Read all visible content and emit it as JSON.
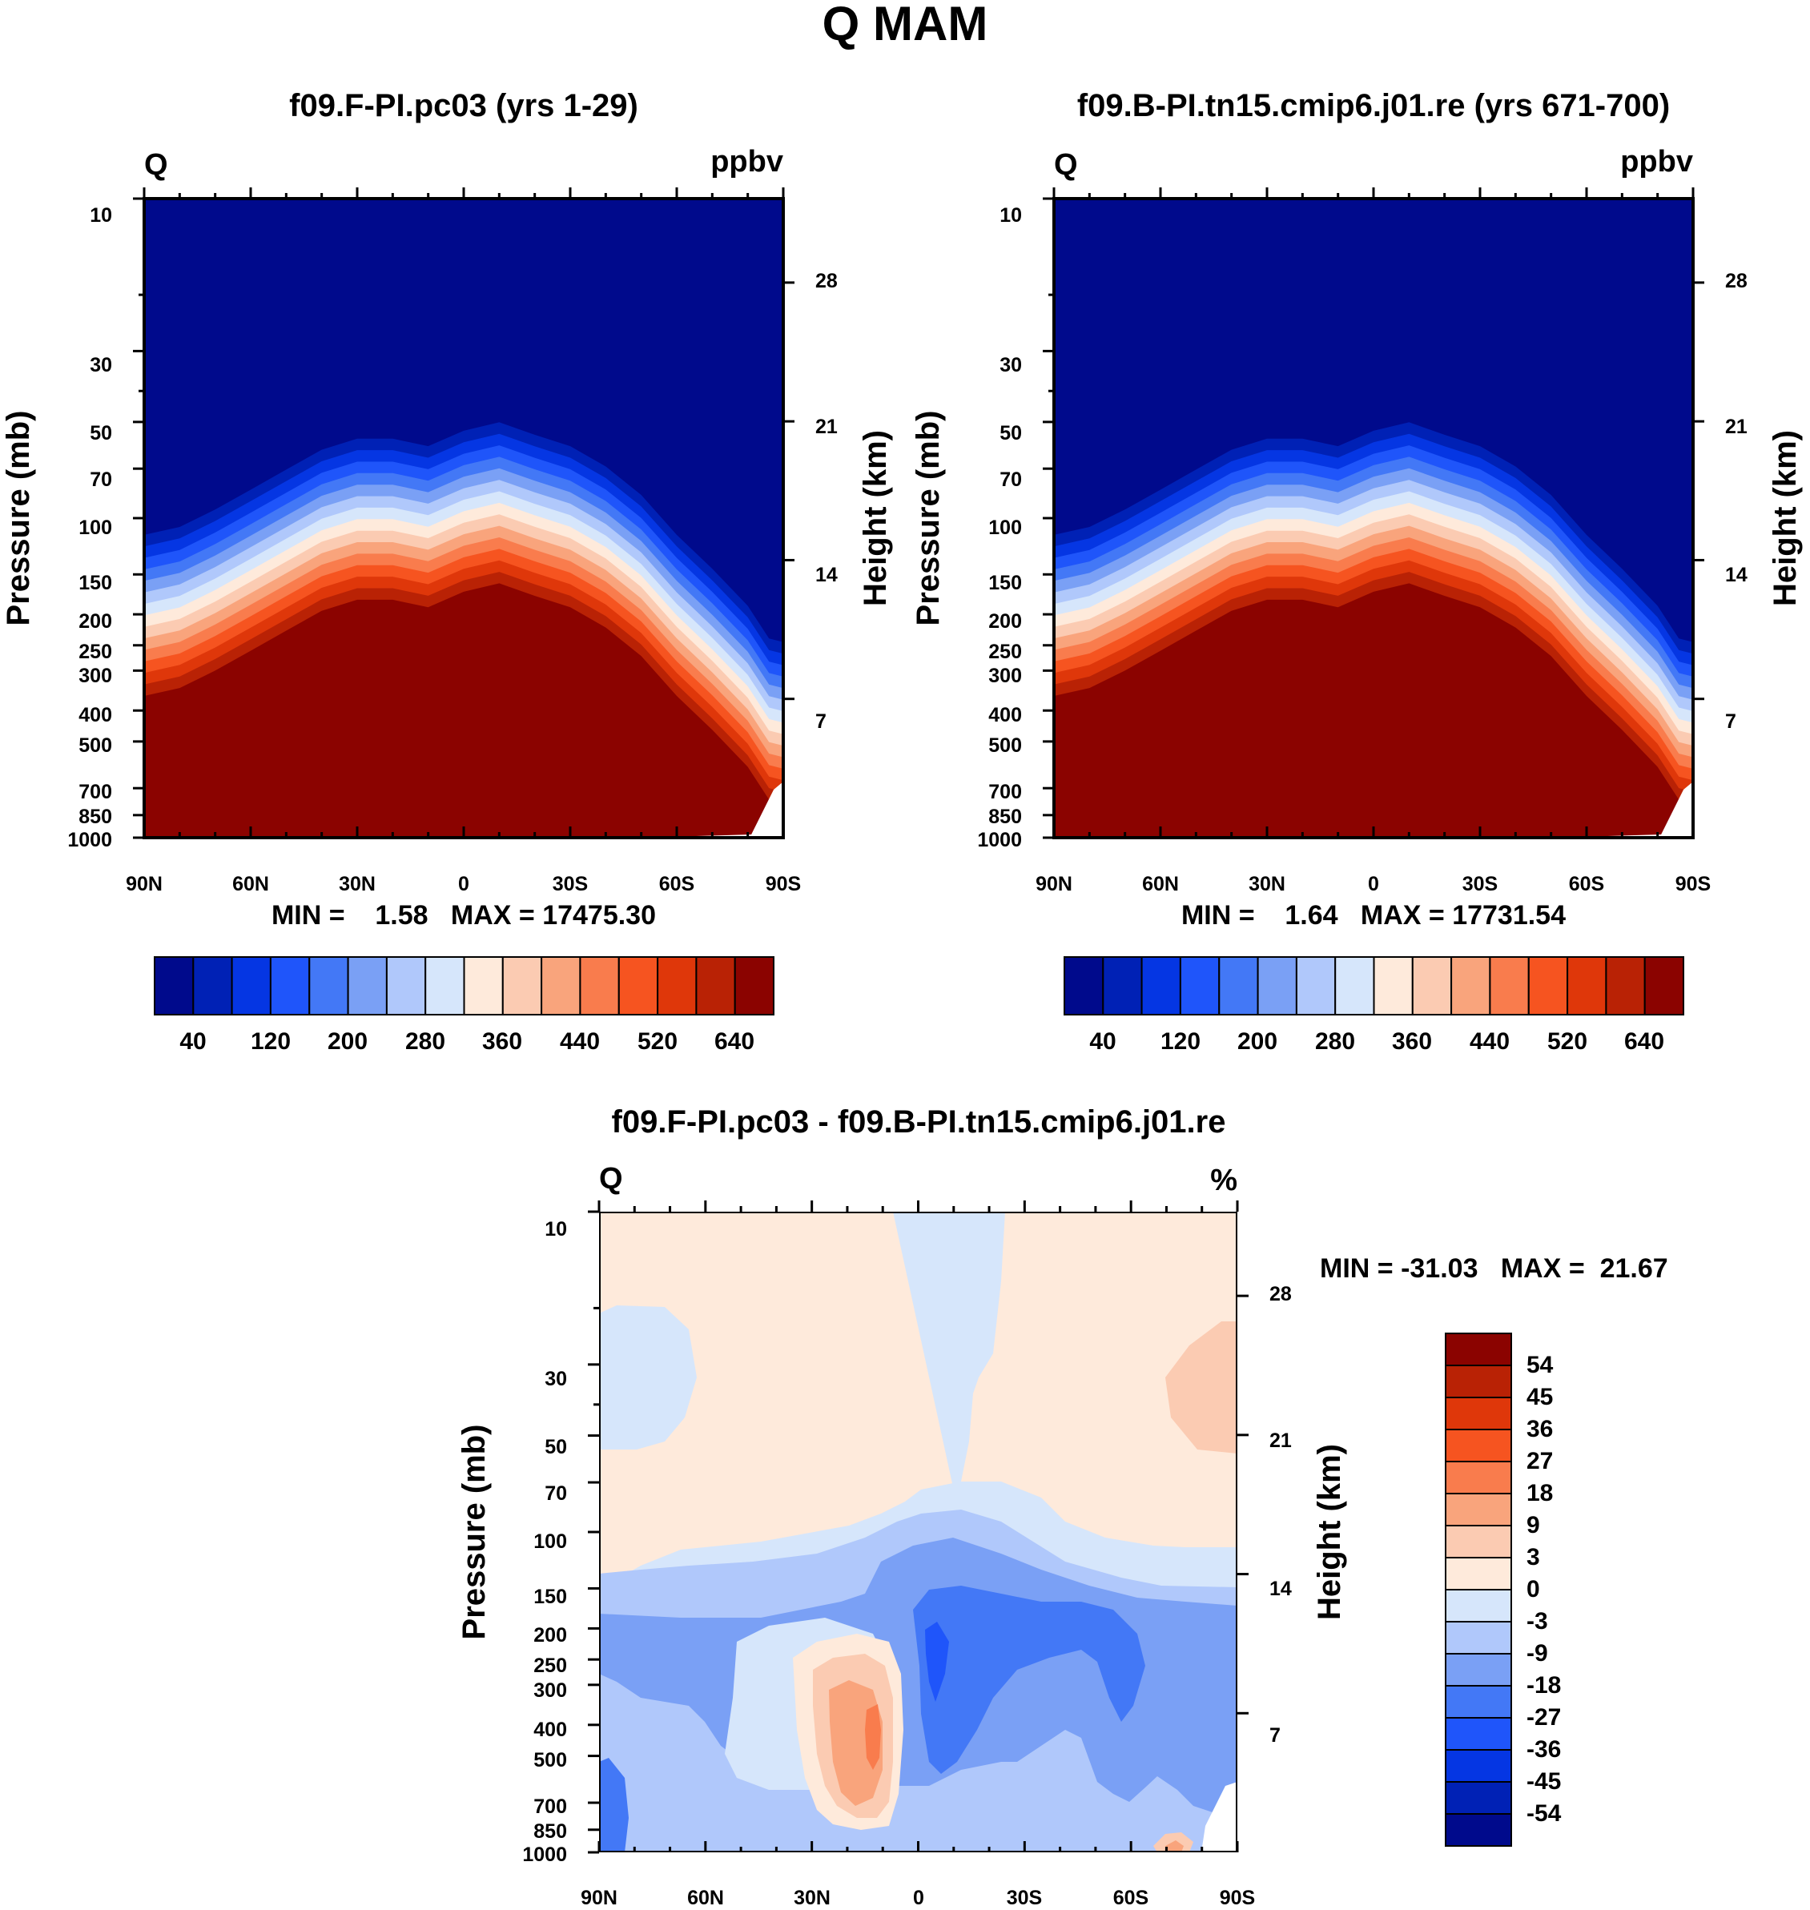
{
  "figure_title": "Q MAM",
  "colors": {
    "abs_levels": [
      "#000a8c",
      "#0021b5",
      "#0536e3",
      "#1f55fa",
      "#4378f6",
      "#7aa0f5",
      "#b0c8fb",
      "#d6e6fb",
      "#feeadb",
      "#fbcbb2",
      "#f9a47c",
      "#f97c4d",
      "#f65420",
      "#df370a",
      "#b92205",
      "#8b0300"
    ],
    "diff_levels": [
      "#000a8c",
      "#0021b5",
      "#0536e3",
      "#1f55fa",
      "#4378f6",
      "#7aa0f5",
      "#b0c8fb",
      "#d6e6fb",
      "#feeadb",
      "#fbcbb2",
      "#f9a47c",
      "#f97c4d",
      "#f65420",
      "#df370a",
      "#b92205",
      "#8b0300"
    ]
  },
  "chart_data": [
    {
      "id": "panel-a",
      "type": "contour",
      "title": "f09.F-PI.pc03 (yrs 1-29)",
      "left_label": "Q",
      "right_label": "ppbv",
      "ylabel": "Pressure (mb)",
      "y2label": "Height (km)",
      "x_ticks": [
        "90N",
        "60N",
        "30N",
        "0",
        "30S",
        "60S",
        "90S"
      ],
      "p_ticks": [
        "10",
        "30",
        "50",
        "70",
        "100",
        "150",
        "200",
        "250",
        "300",
        "400",
        "500",
        "700",
        "850",
        "1000"
      ],
      "h_ticks": [
        "28",
        "21",
        "14",
        "7"
      ],
      "ylim": [
        10,
        1000
      ],
      "stats": "MIN =    1.58   MAX = 17475.30",
      "colorbar_labels": [
        "40",
        "120",
        "200",
        "280",
        "360",
        "440",
        "520",
        "640"
      ],
      "boundary_mb": [
        [
          0,
          360
        ],
        [
          5,
          340
        ],
        [
          10,
          300
        ],
        [
          15,
          260
        ],
        [
          20,
          225
        ],
        [
          25,
          195
        ],
        [
          30,
          180
        ],
        [
          35,
          180
        ],
        [
          40,
          190
        ],
        [
          45,
          170
        ],
        [
          50,
          160
        ],
        [
          55,
          175
        ],
        [
          60,
          190
        ],
        [
          65,
          220
        ],
        [
          70,
          270
        ],
        [
          75,
          360
        ],
        [
          80,
          460
        ],
        [
          85,
          600
        ],
        [
          88,
          760
        ],
        [
          90,
          780
        ]
      ]
    },
    {
      "id": "panel-b",
      "type": "contour",
      "title": "f09.B-PI.tn15.cmip6.j01.re (yrs 671-700)",
      "left_label": "Q",
      "right_label": "ppbv",
      "ylabel": "Pressure (mb)",
      "y2label": "Height (km)",
      "x_ticks": [
        "90N",
        "60N",
        "30N",
        "0",
        "30S",
        "60S",
        "90S"
      ],
      "p_ticks": [
        "10",
        "30",
        "50",
        "70",
        "100",
        "150",
        "200",
        "250",
        "300",
        "400",
        "500",
        "700",
        "850",
        "1000"
      ],
      "h_ticks": [
        "28",
        "21",
        "14",
        "7"
      ],
      "ylim": [
        10,
        1000
      ],
      "stats": "MIN =    1.64   MAX = 17731.54",
      "colorbar_labels": [
        "40",
        "120",
        "200",
        "280",
        "360",
        "440",
        "520",
        "640"
      ],
      "boundary_mb": [
        [
          0,
          360
        ],
        [
          5,
          340
        ],
        [
          10,
          300
        ],
        [
          15,
          260
        ],
        [
          20,
          225
        ],
        [
          25,
          195
        ],
        [
          30,
          180
        ],
        [
          35,
          180
        ],
        [
          40,
          190
        ],
        [
          45,
          170
        ],
        [
          50,
          160
        ],
        [
          55,
          175
        ],
        [
          60,
          190
        ],
        [
          65,
          220
        ],
        [
          70,
          270
        ],
        [
          75,
          360
        ],
        [
          80,
          460
        ],
        [
          85,
          600
        ],
        [
          88,
          760
        ],
        [
          90,
          780
        ]
      ]
    },
    {
      "id": "panel-diff",
      "type": "contour",
      "title": "f09.F-PI.pc03 - f09.B-PI.tn15.cmip6.j01.re",
      "left_label": "Q",
      "right_label": "%",
      "ylabel": "Pressure (mb)",
      "y2label": "Height (km)",
      "x_ticks": [
        "90N",
        "60N",
        "30N",
        "0",
        "30S",
        "60S",
        "90S"
      ],
      "p_ticks": [
        "10",
        "30",
        "50",
        "70",
        "100",
        "150",
        "200",
        "250",
        "300",
        "400",
        "500",
        "700",
        "850",
        "1000"
      ],
      "h_ticks": [
        "28",
        "21",
        "14",
        "7"
      ],
      "ylim": [
        10,
        1000
      ],
      "stats": "MIN = -31.03   MAX =  21.67",
      "colorbar_labels": [
        "54",
        "45",
        "36",
        "27",
        "18",
        "9",
        "3",
        "0",
        "-3",
        "-9",
        "-18",
        "-27",
        "-36",
        "-45",
        "-54"
      ]
    }
  ]
}
